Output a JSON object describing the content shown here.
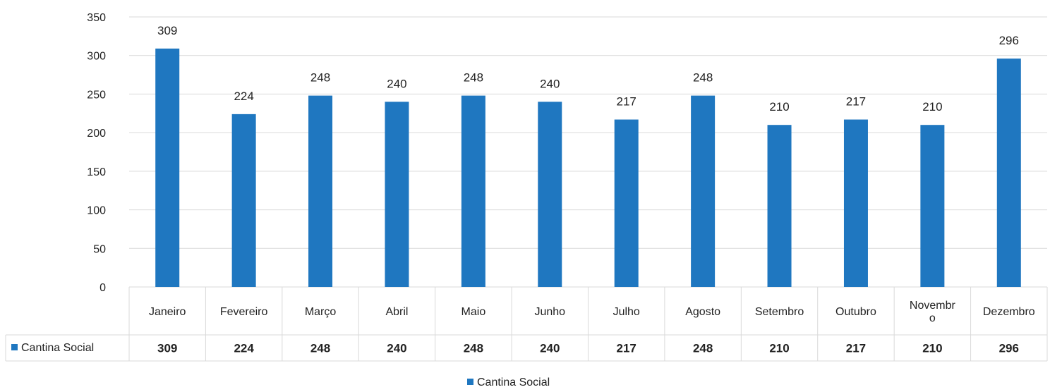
{
  "chart_data": {
    "type": "bar",
    "categories": [
      [
        "Janeiro"
      ],
      [
        "Fevereiro"
      ],
      [
        "Março"
      ],
      [
        "Abril"
      ],
      [
        "Maio"
      ],
      [
        "Junho"
      ],
      [
        "Julho"
      ],
      [
        "Agosto"
      ],
      [
        "Setembro"
      ],
      [
        "Outubro"
      ],
      [
        "Novembr",
        "o"
      ],
      [
        "Dezembro"
      ]
    ],
    "series": [
      {
        "name": "Cantina Social",
        "values": [
          309,
          224,
          248,
          240,
          248,
          240,
          217,
          248,
          210,
          217,
          210,
          296
        ]
      }
    ],
    "ylim": [
      0,
      350
    ],
    "yticks": [
      0,
      50,
      100,
      150,
      200,
      250,
      300,
      350
    ],
    "grid": true,
    "data_labels": true,
    "data_table": true,
    "legend_position": "bottom",
    "colors": {
      "bar": "#1F77C0",
      "grid": "#D9D9D9",
      "table_border": "#D9D9D9"
    }
  }
}
